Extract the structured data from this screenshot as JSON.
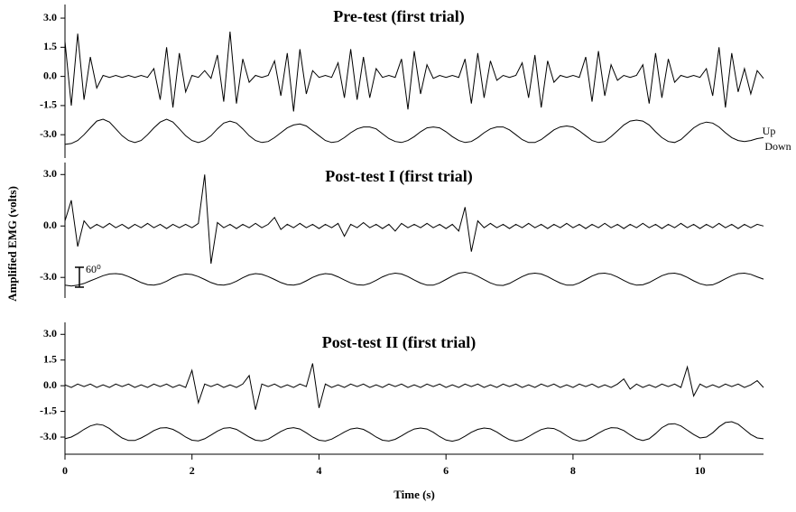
{
  "ylabel": "Amplified EMG (volts)",
  "xlabel": "Time (s)",
  "chart_data": [
    {
      "type": "line",
      "title": "Pre-test (first trial)",
      "annotations": [
        "Up",
        "Down"
      ],
      "xlim": [
        0,
        11
      ],
      "ylim": [
        -4.2,
        3.7
      ],
      "yticks": [
        {
          "value": 3,
          "label": "3.0"
        },
        {
          "value": 1.5,
          "label": "1.5"
        },
        {
          "value": 0,
          "label": "0.0"
        },
        {
          "value": -1.5,
          "label": "-1.5"
        },
        {
          "value": -3,
          "label": "-3.0"
        }
      ],
      "x": [
        0,
        0.1,
        0.2,
        0.3,
        0.4,
        0.5,
        0.6,
        0.7,
        0.8,
        0.9,
        1,
        1.1,
        1.2,
        1.3,
        1.4,
        1.5,
        1.6,
        1.7,
        1.8,
        1.9,
        2,
        2.1,
        2.2,
        2.3,
        2.4,
        2.5,
        2.6,
        2.7,
        2.8,
        2.9,
        3,
        3.1,
        3.2,
        3.3,
        3.4,
        3.5,
        3.6,
        3.7,
        3.8,
        3.9,
        4,
        4.1,
        4.2,
        4.3,
        4.4,
        4.5,
        4.6,
        4.7,
        4.8,
        4.9,
        5,
        5.1,
        5.2,
        5.3,
        5.4,
        5.5,
        5.6,
        5.7,
        5.8,
        5.9,
        6,
        6.1,
        6.2,
        6.3,
        6.4,
        6.5,
        6.6,
        6.7,
        6.8,
        6.9,
        7,
        7.1,
        7.2,
        7.3,
        7.4,
        7.5,
        7.6,
        7.7,
        7.8,
        7.9,
        8,
        8.1,
        8.2,
        8.3,
        8.4,
        8.5,
        8.6,
        8.7,
        8.8,
        8.9,
        9,
        9.1,
        9.2,
        9.3,
        9.4,
        9.5,
        9.6,
        9.7,
        9.8,
        9.9,
        10,
        10.1,
        10.2,
        10.3,
        10.4,
        10.5,
        10.6,
        10.7,
        10.8,
        10.9,
        11
      ],
      "series": [
        {
          "color": "#000000",
          "values": [
            1.8,
            -1.5,
            2.2,
            -1.2,
            1.0,
            -0.6,
            0.05,
            -0.05,
            0.05,
            -0.05,
            0.05,
            -0.05,
            0.05,
            -0.05,
            0.4,
            -1.2,
            1.5,
            -1.6,
            1.2,
            -0.8,
            0.05,
            -0.05,
            0.3,
            -0.1,
            1.1,
            -1.3,
            2.3,
            -1.4,
            0.9,
            -0.3,
            0.05,
            -0.05,
            0.05,
            0.8,
            -1.0,
            1.2,
            -1.8,
            1.4,
            -0.9,
            0.3,
            -0.05,
            0.05,
            -0.05,
            0.7,
            -1.1,
            1.4,
            -1.2,
            1.0,
            -1.1,
            0.4,
            -0.05,
            0.05,
            -0.05,
            0.9,
            -1.7,
            1.3,
            -0.9,
            0.6,
            -0.1,
            0.05,
            -0.05,
            0.05,
            -0.05,
            0.9,
            -1.4,
            1.2,
            -1.1,
            0.8,
            -0.2,
            0.05,
            -0.05,
            0.05,
            0.7,
            -1.1,
            1.1,
            -1.6,
            0.8,
            -0.3,
            0.05,
            -0.05,
            0.05,
            -0.05,
            1.0,
            -1.3,
            1.3,
            -1.0,
            0.6,
            -0.2,
            0.05,
            -0.05,
            0.05,
            0.6,
            -1.4,
            1.2,
            -1.1,
            0.9,
            -0.3,
            0.05,
            -0.05,
            0.05,
            -0.05,
            0.4,
            -1.0,
            1.5,
            -1.6,
            1.2,
            -0.8,
            0.4,
            -0.9,
            0.3,
            -0.1
          ]
        },
        {
          "color": "#000000",
          "values": [
            -3.5,
            -3.45,
            -3.3,
            -3.0,
            -2.65,
            -2.3,
            -2.2,
            -2.35,
            -2.7,
            -3.05,
            -3.3,
            -3.4,
            -3.3,
            -3.0,
            -2.65,
            -2.35,
            -2.2,
            -2.35,
            -2.7,
            -3.05,
            -3.3,
            -3.4,
            -3.3,
            -3.05,
            -2.7,
            -2.4,
            -2.3,
            -2.4,
            -2.7,
            -3.05,
            -3.3,
            -3.4,
            -3.35,
            -3.15,
            -2.9,
            -2.65,
            -2.5,
            -2.45,
            -2.55,
            -2.8,
            -3.05,
            -3.3,
            -3.4,
            -3.35,
            -3.15,
            -2.9,
            -2.7,
            -2.6,
            -2.6,
            -2.7,
            -2.95,
            -3.2,
            -3.35,
            -3.4,
            -3.3,
            -3.1,
            -2.85,
            -2.65,
            -2.6,
            -2.65,
            -2.85,
            -3.1,
            -3.3,
            -3.4,
            -3.35,
            -3.15,
            -2.9,
            -2.7,
            -2.6,
            -2.6,
            -2.75,
            -3.0,
            -3.25,
            -3.4,
            -3.4,
            -3.25,
            -3.0,
            -2.75,
            -2.6,
            -2.55,
            -2.6,
            -2.8,
            -3.05,
            -3.3,
            -3.4,
            -3.35,
            -3.1,
            -2.8,
            -2.5,
            -2.3,
            -2.25,
            -2.3,
            -2.5,
            -2.85,
            -3.15,
            -3.35,
            -3.4,
            -3.25,
            -2.95,
            -2.65,
            -2.45,
            -2.35,
            -2.4,
            -2.6,
            -2.9,
            -3.15,
            -3.3,
            -3.35,
            -3.3,
            -3.2,
            -3.15
          ]
        }
      ]
    },
    {
      "type": "line",
      "title": "Post-test I (first trial)",
      "annotations": [
        "60⁰"
      ],
      "xlim": [
        0,
        11
      ],
      "ylim": [
        -4.2,
        3.7
      ],
      "yticks": [
        {
          "value": 3,
          "label": "3.0"
        },
        {
          "value": 0,
          "label": "0.0"
        },
        {
          "value": -3,
          "label": "-3.0"
        }
      ],
      "x": [
        0,
        0.1,
        0.2,
        0.3,
        0.4,
        0.5,
        0.6,
        0.7,
        0.8,
        0.9,
        1,
        1.1,
        1.2,
        1.3,
        1.4,
        1.5,
        1.6,
        1.7,
        1.8,
        1.9,
        2,
        2.1,
        2.2,
        2.3,
        2.4,
        2.5,
        2.6,
        2.7,
        2.8,
        2.9,
        3,
        3.1,
        3.2,
        3.3,
        3.4,
        3.5,
        3.6,
        3.7,
        3.8,
        3.9,
        4,
        4.1,
        4.2,
        4.3,
        4.4,
        4.5,
        4.6,
        4.7,
        4.8,
        4.9,
        5,
        5.1,
        5.2,
        5.3,
        5.4,
        5.5,
        5.6,
        5.7,
        5.8,
        5.9,
        6,
        6.1,
        6.2,
        6.3,
        6.4,
        6.5,
        6.6,
        6.7,
        6.8,
        6.9,
        7,
        7.1,
        7.2,
        7.3,
        7.4,
        7.5,
        7.6,
        7.7,
        7.8,
        7.9,
        8,
        8.1,
        8.2,
        8.3,
        8.4,
        8.5,
        8.6,
        8.7,
        8.8,
        8.9,
        9,
        9.1,
        9.2,
        9.3,
        9.4,
        9.5,
        9.6,
        9.7,
        9.8,
        9.9,
        10,
        10.1,
        10.2,
        10.3,
        10.4,
        10.5,
        10.6,
        10.7,
        10.8,
        10.9,
        11
      ],
      "series": [
        {
          "color": "#000000",
          "values": [
            0.3,
            1.5,
            -1.2,
            0.3,
            -0.15,
            0.1,
            -0.1,
            0.15,
            -0.1,
            0.1,
            -0.15,
            0.1,
            -0.1,
            0.15,
            -0.1,
            0.1,
            -0.15,
            0.1,
            -0.1,
            0.1,
            -0.1,
            0.15,
            3.0,
            -2.2,
            0.2,
            -0.1,
            0.1,
            -0.15,
            0.1,
            -0.1,
            0.15,
            -0.1,
            0.1,
            0.5,
            -0.2,
            0.1,
            -0.1,
            0.15,
            -0.1,
            0.1,
            -0.15,
            0.1,
            -0.1,
            0.15,
            -0.6,
            0.1,
            -0.1,
            0.2,
            -0.1,
            0.1,
            -0.15,
            0.1,
            -0.3,
            0.15,
            -0.1,
            0.1,
            -0.1,
            0.15,
            -0.1,
            0.1,
            -0.15,
            0.1,
            -0.3,
            1.1,
            -1.5,
            0.3,
            -0.1,
            0.15,
            -0.1,
            0.1,
            -0.15,
            0.1,
            -0.1,
            0.15,
            -0.1,
            0.1,
            -0.15,
            0.1,
            -0.1,
            0.15,
            -0.1,
            0.1,
            -0.15,
            0.1,
            -0.1,
            0.15,
            -0.1,
            0.1,
            -0.15,
            0.1,
            -0.1,
            0.15,
            -0.1,
            0.1,
            -0.15,
            0.1,
            -0.1,
            0.15,
            -0.1,
            0.1,
            -0.15,
            0.1,
            -0.1,
            0.15,
            -0.1,
            0.1,
            -0.15,
            0.1,
            -0.1,
            0.1,
            0
          ]
        },
        {
          "color": "#000000",
          "values": [
            -3.45,
            -3.5,
            -3.45,
            -3.35,
            -3.2,
            -3.05,
            -2.9,
            -2.8,
            -2.78,
            -2.82,
            -2.95,
            -3.12,
            -3.3,
            -3.42,
            -3.45,
            -3.38,
            -3.22,
            -3.02,
            -2.87,
            -2.8,
            -2.83,
            -2.95,
            -3.12,
            -3.3,
            -3.42,
            -3.45,
            -3.38,
            -3.22,
            -3.02,
            -2.85,
            -2.78,
            -2.82,
            -2.95,
            -3.12,
            -3.3,
            -3.42,
            -3.45,
            -3.38,
            -3.2,
            -3.0,
            -2.85,
            -2.78,
            -2.82,
            -2.97,
            -3.15,
            -3.32,
            -3.43,
            -3.45,
            -3.35,
            -3.17,
            -2.97,
            -2.82,
            -2.75,
            -2.8,
            -2.95,
            -3.15,
            -3.33,
            -3.45,
            -3.45,
            -3.32,
            -3.12,
            -2.92,
            -2.75,
            -2.7,
            -2.77,
            -2.93,
            -3.13,
            -3.32,
            -3.45,
            -3.47,
            -3.35,
            -3.15,
            -2.95,
            -2.8,
            -2.75,
            -2.8,
            -2.95,
            -3.15,
            -3.33,
            -3.45,
            -3.45,
            -3.32,
            -3.12,
            -2.92,
            -2.78,
            -2.75,
            -2.82,
            -2.98,
            -3.18,
            -3.35,
            -3.45,
            -3.43,
            -3.3,
            -3.1,
            -2.9,
            -2.78,
            -2.75,
            -2.83,
            -3.0,
            -3.2,
            -3.37,
            -3.46,
            -3.43,
            -3.28,
            -3.08,
            -2.9,
            -2.78,
            -2.75,
            -2.82,
            -2.97,
            -3.1
          ]
        }
      ]
    },
    {
      "type": "line",
      "title": "Post-test II (first trial)",
      "xlim": [
        0,
        11
      ],
      "ylim": [
        -4.0,
        3.7
      ],
      "xticks": [
        0,
        2,
        4,
        6,
        8,
        10
      ],
      "yticks": [
        {
          "value": 3,
          "label": "3.0"
        },
        {
          "value": 1.5,
          "label": "1.5"
        },
        {
          "value": 0,
          "label": "0.0"
        },
        {
          "value": -1.5,
          "label": "-1.5"
        },
        {
          "value": -3,
          "label": "-3.0"
        }
      ],
      "x": [
        0,
        0.1,
        0.2,
        0.3,
        0.4,
        0.5,
        0.6,
        0.7,
        0.8,
        0.9,
        1,
        1.1,
        1.2,
        1.3,
        1.4,
        1.5,
        1.6,
        1.7,
        1.8,
        1.9,
        2,
        2.1,
        2.2,
        2.3,
        2.4,
        2.5,
        2.6,
        2.7,
        2.8,
        2.9,
        3,
        3.1,
        3.2,
        3.3,
        3.4,
        3.5,
        3.6,
        3.7,
        3.8,
        3.9,
        4,
        4.1,
        4.2,
        4.3,
        4.4,
        4.5,
        4.6,
        4.7,
        4.8,
        4.9,
        5,
        5.1,
        5.2,
        5.3,
        5.4,
        5.5,
        5.6,
        5.7,
        5.8,
        5.9,
        6,
        6.1,
        6.2,
        6.3,
        6.4,
        6.5,
        6.6,
        6.7,
        6.8,
        6.9,
        7,
        7.1,
        7.2,
        7.3,
        7.4,
        7.5,
        7.6,
        7.7,
        7.8,
        7.9,
        8,
        8.1,
        8.2,
        8.3,
        8.4,
        8.5,
        8.6,
        8.7,
        8.8,
        8.9,
        9,
        9.1,
        9.2,
        9.3,
        9.4,
        9.5,
        9.6,
        9.7,
        9.8,
        9.9,
        10,
        10.1,
        10.2,
        10.3,
        10.4,
        10.5,
        10.6,
        10.7,
        10.8,
        10.9,
        11
      ],
      "series": [
        {
          "color": "#000000",
          "values": [
            0.05,
            -0.1,
            0.1,
            -0.05,
            0.1,
            -0.1,
            0.05,
            -0.1,
            0.1,
            -0.05,
            0.1,
            -0.1,
            0.05,
            -0.1,
            0.1,
            -0.05,
            0.1,
            -0.1,
            0.05,
            -0.1,
            0.9,
            -1.0,
            0.1,
            -0.05,
            0.1,
            -0.1,
            0.05,
            -0.1,
            0.1,
            0.6,
            -1.4,
            0.1,
            -0.05,
            0.1,
            -0.1,
            0.05,
            -0.1,
            0.1,
            -0.05,
            1.3,
            -1.3,
            0.1,
            -0.1,
            0.05,
            -0.1,
            0.1,
            -0.05,
            0.1,
            -0.1,
            0.05,
            -0.1,
            0.1,
            -0.05,
            0.1,
            -0.1,
            0.05,
            -0.1,
            0.1,
            -0.05,
            0.1,
            -0.1,
            0.05,
            -0.1,
            0.1,
            -0.05,
            0.1,
            -0.1,
            0.05,
            -0.1,
            0.1,
            -0.05,
            0.1,
            -0.1,
            0.05,
            -0.1,
            0.1,
            -0.05,
            0.1,
            -0.1,
            0.05,
            -0.1,
            0.1,
            -0.05,
            0.1,
            -0.1,
            0.05,
            -0.1,
            0.1,
            0.4,
            -0.2,
            0.1,
            -0.1,
            0.05,
            -0.1,
            0.1,
            -0.05,
            0.1,
            -0.1,
            1.1,
            -0.6,
            0.1,
            -0.1,
            0.05,
            -0.1,
            0.1,
            -0.05,
            0.1,
            -0.1,
            0.05,
            0.3,
            -0.1
          ]
        },
        {
          "color": "#000000",
          "values": [
            -3.1,
            -3.0,
            -2.8,
            -2.55,
            -2.35,
            -2.25,
            -2.3,
            -2.5,
            -2.8,
            -3.05,
            -3.2,
            -3.2,
            -3.05,
            -2.85,
            -2.62,
            -2.47,
            -2.45,
            -2.55,
            -2.75,
            -3.0,
            -3.18,
            -3.22,
            -3.1,
            -2.88,
            -2.65,
            -2.48,
            -2.45,
            -2.55,
            -2.77,
            -3.0,
            -3.18,
            -3.22,
            -3.12,
            -2.9,
            -2.67,
            -2.5,
            -2.45,
            -2.53,
            -2.75,
            -3.0,
            -3.18,
            -3.23,
            -3.12,
            -2.92,
            -2.7,
            -2.53,
            -2.47,
            -2.55,
            -2.75,
            -3.0,
            -3.18,
            -3.23,
            -3.13,
            -2.93,
            -2.7,
            -2.53,
            -2.47,
            -2.53,
            -2.72,
            -2.97,
            -3.17,
            -3.24,
            -3.15,
            -2.95,
            -2.72,
            -2.55,
            -2.47,
            -2.52,
            -2.7,
            -2.95,
            -3.15,
            -3.24,
            -3.17,
            -2.97,
            -2.75,
            -2.56,
            -2.47,
            -2.5,
            -2.67,
            -2.92,
            -3.13,
            -3.23,
            -3.18,
            -3.0,
            -2.77,
            -2.57,
            -2.45,
            -2.47,
            -2.62,
            -2.87,
            -3.1,
            -3.2,
            -3.1,
            -2.8,
            -2.45,
            -2.25,
            -2.22,
            -2.35,
            -2.6,
            -2.85,
            -3.05,
            -3.0,
            -2.75,
            -2.4,
            -2.15,
            -2.1,
            -2.25,
            -2.55,
            -2.85,
            -3.05,
            -3.1
          ]
        }
      ]
    }
  ]
}
